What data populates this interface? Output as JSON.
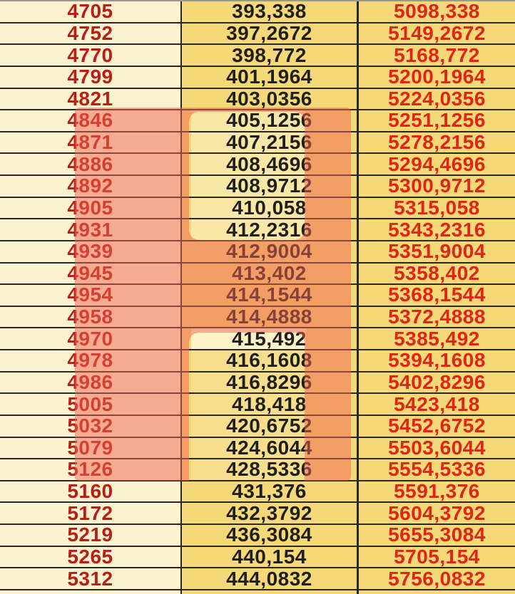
{
  "table": {
    "rows": [
      {
        "c1": "4705",
        "c2": "393,338",
        "c3": "5098,338"
      },
      {
        "c1": "4752",
        "c2": "397,2672",
        "c3": "5149,2672"
      },
      {
        "c1": "4770",
        "c2": "398,772",
        "c3": "5168,772"
      },
      {
        "c1": "4799",
        "c2": "401,1964",
        "c3": "5200,1964"
      },
      {
        "c1": "4821",
        "c2": "403,0356",
        "c3": "5224,0356"
      },
      {
        "c1": "4846",
        "c2": "405,1256",
        "c3": "5251,1256"
      },
      {
        "c1": "4871",
        "c2": "407,2156",
        "c3": "5278,2156"
      },
      {
        "c1": "4886",
        "c2": "408,4696",
        "c3": "5294,4696"
      },
      {
        "c1": "4892",
        "c2": "408,9712",
        "c3": "5300,9712"
      },
      {
        "c1": "4905",
        "c2": "410,058",
        "c3": "5315,058"
      },
      {
        "c1": "4931",
        "c2": "412,2316",
        "c3": "5343,2316"
      },
      {
        "c1": "4939",
        "c2": "412,9004",
        "c3": "5351,9004"
      },
      {
        "c1": "4945",
        "c2": "413,402",
        "c3": "5358,402"
      },
      {
        "c1": "4954",
        "c2": "414,1544",
        "c3": "5368,1544"
      },
      {
        "c1": "4958",
        "c2": "414,4888",
        "c3": "5372,4888"
      },
      {
        "c1": "4970",
        "c2": "415,492",
        "c3": "5385,492"
      },
      {
        "c1": "4978",
        "c2": "416,1608",
        "c3": "5394,1608"
      },
      {
        "c1": "4986",
        "c2": "416,8296",
        "c3": "5402,8296"
      },
      {
        "c1": "5005",
        "c2": "418,418",
        "c3": "5423,418"
      },
      {
        "c1": "5032",
        "c2": "420,6752",
        "c3": "5452,6752"
      },
      {
        "c1": "5079",
        "c2": "424,6044",
        "c3": "5503,6044"
      },
      {
        "c1": "5126",
        "c2": "428,5336",
        "c3": "5554,5336"
      },
      {
        "c1": "5160",
        "c2": "431,376",
        "c3": "5591,376"
      },
      {
        "c1": "5172",
        "c2": "432,3792",
        "c3": "5604,3792"
      },
      {
        "c1": "5219",
        "c2": "436,3084",
        "c3": "5655,3084"
      },
      {
        "c1": "5265",
        "c2": "440,154",
        "c3": "5705,154"
      },
      {
        "c1": "5312",
        "c2": "444,0832",
        "c3": "5756,0832"
      }
    ]
  },
  "colors": {
    "col1_background": "#FBF2D0",
    "col2_background": "#F5D878",
    "col3_background": "#F5D878",
    "col1_text": "#B91D15",
    "col2_text": "#201F1D",
    "col3_text": "#DF2517",
    "grid_border": "#2A2822",
    "highlight_overlay": "#F06452",
    "highlight_window_light": "#F8E7A6"
  },
  "highlight": {
    "first_highlighted_row_col1": "4846",
    "last_highlighted_row_col1": "5126"
  }
}
